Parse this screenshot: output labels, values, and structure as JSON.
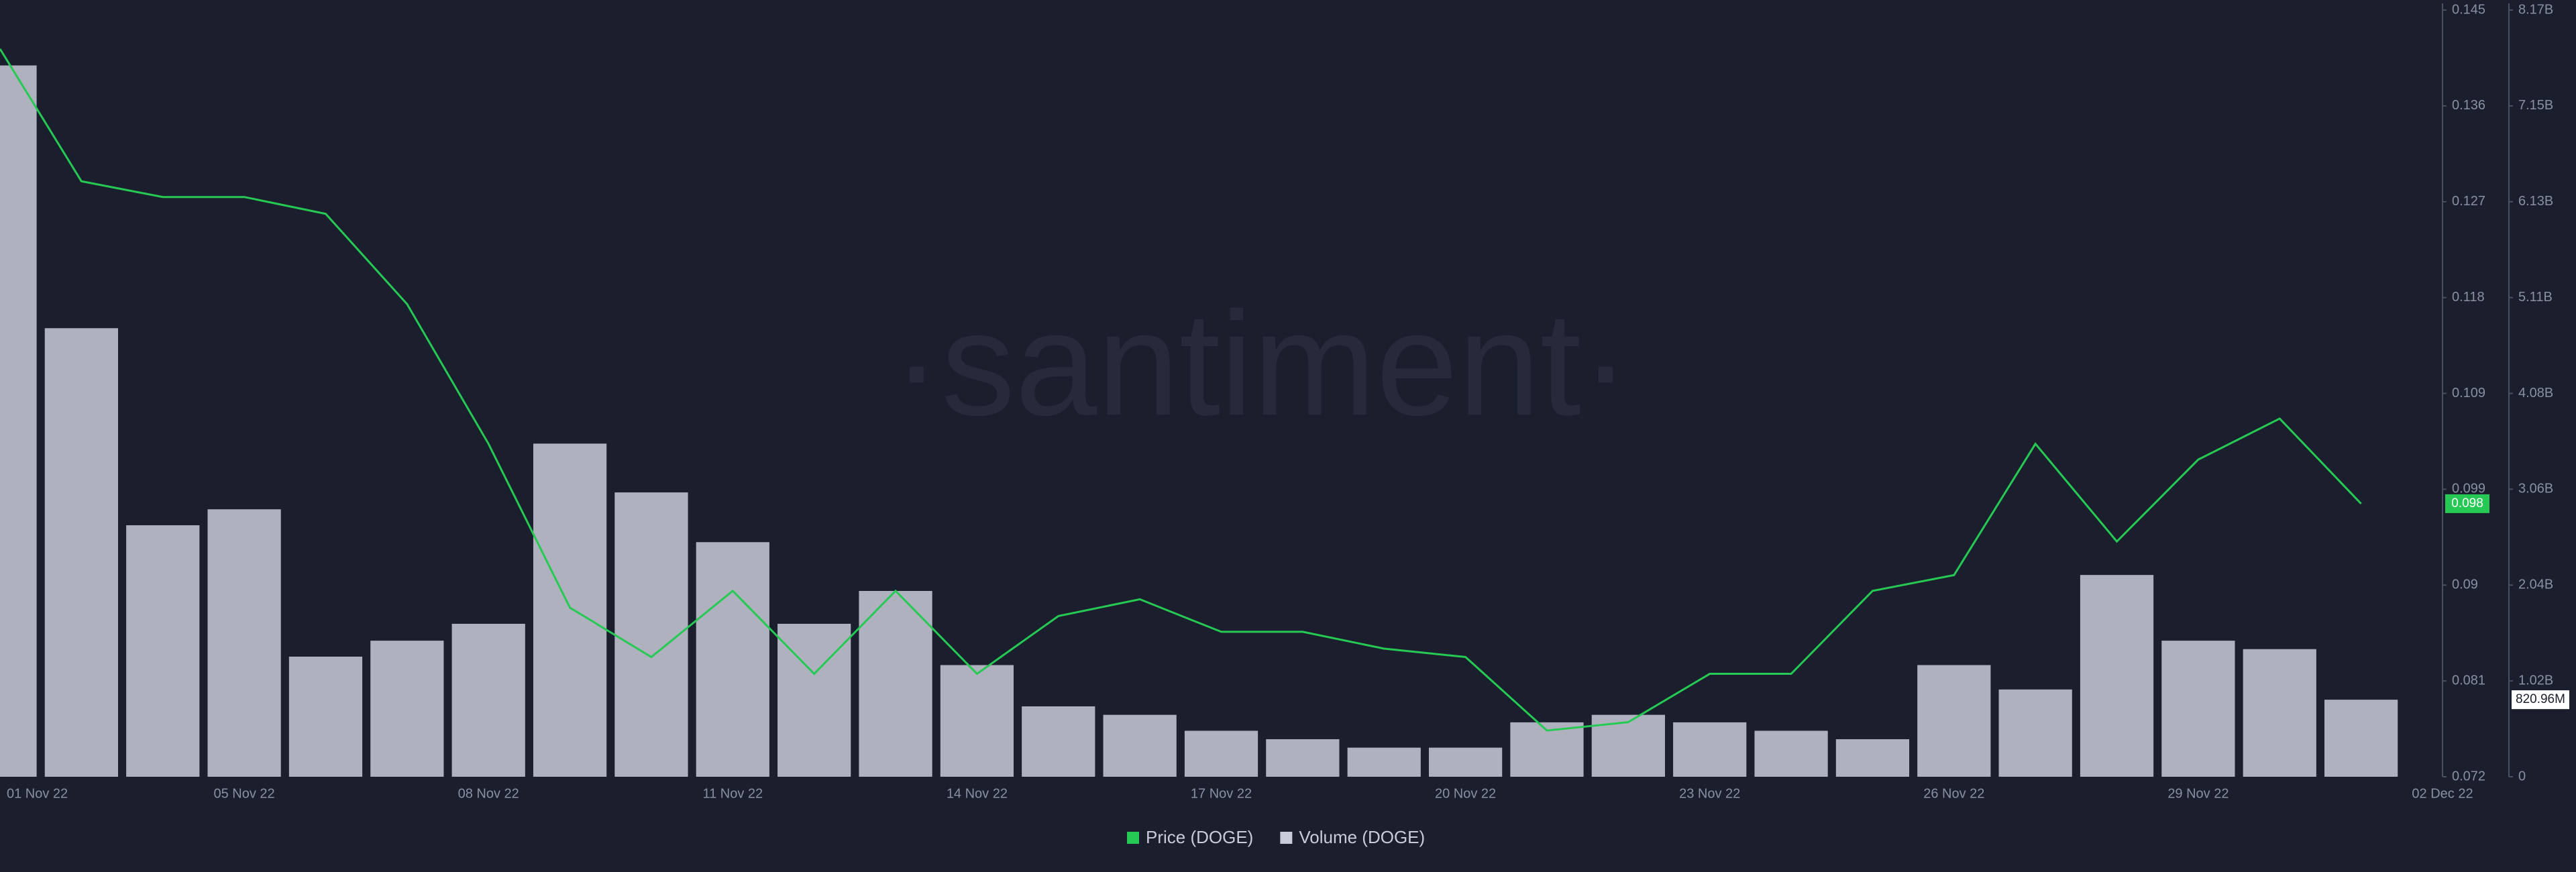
{
  "chart_data": {
    "type": "line-bar",
    "watermark": "·santiment·",
    "x": [
      "02 Nov 22",
      "03 Nov 22",
      "04 Nov 22",
      "05 Nov 22",
      "06 Nov 22",
      "07 Nov 22",
      "08 Nov 22",
      "09 Nov 22",
      "10 Nov 22",
      "11 Nov 22",
      "12 Nov 22",
      "13 Nov 22",
      "14 Nov 22",
      "15 Nov 22",
      "16 Nov 22",
      "17 Nov 22",
      "18 Nov 22",
      "19 Nov 22",
      "20 Nov 22",
      "21 Nov 22",
      "22 Nov 22",
      "23 Nov 22",
      "24 Nov 22",
      "25 Nov 22",
      "26 Nov 22",
      "27 Nov 22",
      "28 Nov 22",
      "29 Nov 22",
      "30 Nov 22",
      "01 Dec 22"
    ],
    "xlim": [
      "02 Nov 22",
      "02 Dec 22"
    ],
    "xticks": [
      "01 Nov 22",
      "05 Nov 22",
      "08 Nov 22",
      "11 Nov 22",
      "14 Nov 22",
      "17 Nov 22",
      "20 Nov 22",
      "23 Nov 22",
      "26 Nov 22",
      "29 Nov 22",
      "02 Dec 22"
    ],
    "ylim": [
      0.072,
      0.145
    ],
    "yticks": [
      0.072,
      {
        "value": 0.081125,
        "label": "0.081"
      },
      {
        "value": 0.09025,
        "label": "0.09"
      },
      {
        "value": 0.099375,
        "label": "0.099"
      },
      {
        "value": 0.1085,
        "label": "0.109"
      },
      {
        "value": 0.117625,
        "label": "0.118"
      },
      {
        "value": 0.12675,
        "label": "0.127"
      },
      {
        "value": 0.135875,
        "label": "0.136"
      },
      0.145
    ],
    "y2lim": [
      0,
      8170000000
    ],
    "y2ticks": [
      0,
      {
        "value": 1021250000,
        "label": "1.02B"
      },
      {
        "value": 2042500000,
        "label": "2.04B"
      },
      {
        "value": 3063750000,
        "label": "3.06B"
      },
      {
        "value": 4085000000,
        "label": "4.08B"
      },
      {
        "value": 5106250000,
        "label": "5.11B"
      },
      {
        "value": 6127500000,
        "label": "6.13B"
      },
      {
        "value": 7148750000,
        "label": "7.15B"
      },
      {
        "value": 8170000000,
        "label": "8.17B"
      }
    ],
    "series": [
      {
        "name": "Price (DOGE)",
        "type": "line",
        "color": "#26c953",
        "current_label": "0.098",
        "values": [
          0.1413,
          0.1287,
          0.1272,
          0.1272,
          0.1256,
          0.117,
          0.1037,
          0.0881,
          0.0834,
          0.0897,
          0.0818,
          0.0897,
          0.0818,
          0.0873,
          0.0889,
          0.0858,
          0.0858,
          0.0842,
          0.0834,
          0.0764,
          0.0772,
          0.0818,
          0.0818,
          0.0897,
          0.0912,
          0.1037,
          0.0944,
          0.1022,
          0.1061,
          0.098
        ]
      },
      {
        "name": "Volume (DOGE)",
        "type": "bar",
        "axis": "y2",
        "color": "#c9ccd8",
        "current_label": "820.96M",
        "values": [
          7580000000,
          4780000000,
          2680000000,
          2850000000,
          1280000000,
          1450000000,
          1630000000,
          3550000000,
          3030000000,
          2500000000,
          1630000000,
          1980000000,
          1190000000,
          750000000,
          660000000,
          490000000,
          400000000,
          310000000,
          310000000,
          580000000,
          660000000,
          580000000,
          490000000,
          400000000,
          1190000000,
          930000000,
          2150000000,
          1450000000,
          1360000000,
          820960000
        ]
      }
    ]
  }
}
